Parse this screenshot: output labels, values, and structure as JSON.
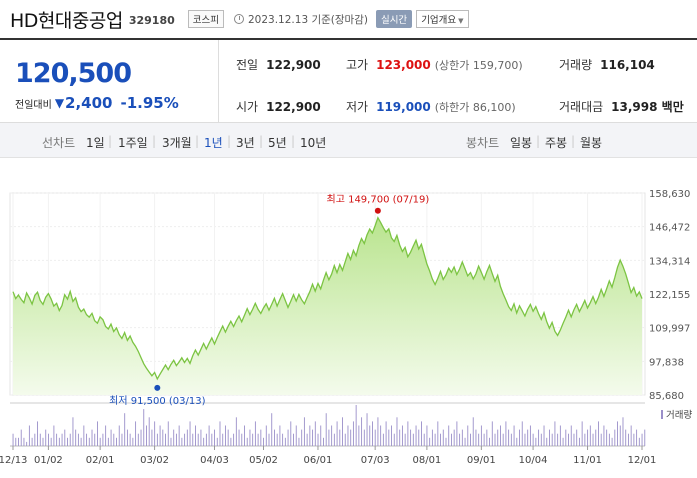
{
  "header": {
    "name": "HD현대중공업",
    "code": "329180",
    "market": "코스피",
    "date": "2023.12.13 기준(장마감)",
    "realtime": "실시간",
    "company_info": "기업개요",
    "company_info_caret": "▼"
  },
  "summary": {
    "price": "120,500",
    "change_label": "전일대비",
    "change_arrow": "▼",
    "change": "2,400",
    "change_pct": "-1.95%",
    "prev_label": "전일",
    "prev": "122,900",
    "high_label": "고가",
    "high": "123,000",
    "upper_limit": "(상한가 159,700)",
    "volume_label": "거래량",
    "volume": "116,104",
    "open_label": "시가",
    "open": "122,900",
    "low_label": "저가",
    "low": "119,000",
    "lower_limit": "(하한가 86,100)",
    "amount_label": "거래대금",
    "amount": "13,998 백만"
  },
  "period_bar": {
    "line_caption": "선차트",
    "periods": [
      "1일",
      "1주일",
      "3개월",
      "1년",
      "3년",
      "5년",
      "10년"
    ],
    "selected": "1년",
    "candle_caption": "봉차트",
    "candles": [
      "일봉",
      "주봉",
      "월봉"
    ]
  },
  "colors": {
    "accent_blue": "#1a4fba",
    "up_red": "#d11111",
    "line_green": "#7cc443",
    "fill_green": "#d8f0c0",
    "volume_bar": "#9a8fc9"
  },
  "chart_data": {
    "type": "area",
    "y_ticks": [
      "158,630",
      "146,472",
      "134,314",
      "122,155",
      "109,997",
      "97,838",
      "85,680"
    ],
    "ylim": [
      85680,
      158630
    ],
    "x_ticks": [
      "12/13",
      "01/02",
      "02/01",
      "03/02",
      "04/03",
      "05/02",
      "06/01",
      "07/03",
      "08/01",
      "09/01",
      "10/04",
      "11/01",
      "12/01"
    ],
    "high_annotation": "최고 149,700 (07/19)",
    "low_annotation": "최저 91,500 (03/13)",
    "volume_legend": "거래량",
    "series": [
      {
        "values": [
          123000,
          120500,
          121800,
          120200,
          119000,
          122500,
          120800,
          118500,
          121600,
          122800,
          119800,
          118400,
          121000,
          122300,
          120400,
          117800,
          118800,
          116200,
          118000,
          121900,
          120300,
          123100,
          119500,
          120800,
          117400,
          115800,
          116700,
          114700,
          113800,
          115200,
          112500,
          111600,
          113900,
          112900,
          110400,
          109500,
          111300,
          108600,
          109900,
          107500,
          106100,
          108200,
          105400,
          107000,
          104700,
          103300,
          101400,
          99200,
          97000,
          95400,
          94000,
          92600,
          93800,
          91500,
          93200,
          94900,
          96500,
          94800,
          96700,
          98200,
          96300,
          97600,
          99100,
          97400,
          98900,
          97100,
          99800,
          101900,
          100100,
          102200,
          104300,
          102300,
          104400,
          106300,
          104100,
          106400,
          108500,
          110600,
          108400,
          110500,
          112300,
          110400,
          112500,
          114200,
          112100,
          114500,
          116900,
          114700,
          116600,
          118800,
          116600,
          115100,
          117100,
          118600,
          116300,
          118400,
          120600,
          117800,
          120100,
          122300,
          119800,
          117300,
          119500,
          121900,
          119600,
          122000,
          120100,
          118600,
          120900,
          123000,
          125700,
          123200,
          126000,
          124000,
          127100,
          129900,
          127300,
          129300,
          132400,
          129900,
          132800,
          130700,
          133800,
          136800,
          134600,
          137900,
          136000,
          139600,
          142200,
          140400,
          143500,
          145600,
          144200,
          146900,
          149700,
          148000,
          146100,
          144500,
          145700,
          142400,
          141100,
          143300,
          139800,
          137500,
          139000,
          135600,
          137200,
          139500,
          141600,
          138400,
          140100,
          136500,
          133000,
          130500,
          127600,
          125600,
          127800,
          130300,
          127400,
          129000,
          131500,
          130000,
          131900,
          129200,
          131200,
          133700,
          131300,
          128700,
          129900,
          127600,
          129400,
          132200,
          130000,
          127500,
          130200,
          132500,
          129600,
          126700,
          128900,
          124900,
          122300,
          120000,
          117600,
          116200,
          118600,
          115300,
          117900,
          116100,
          114200,
          116600,
          118400,
          115900,
          117600,
          115100,
          113000,
          115400,
          112200,
          109800,
          111900,
          108700,
          107200,
          109100,
          111500,
          113800,
          116300,
          113900,
          116400,
          118400,
          115800,
          117700,
          119800,
          117100,
          119000,
          121200,
          118700,
          120900,
          123800,
          121300,
          124000,
          126900,
          124600,
          128100,
          131800,
          134400,
          132200,
          129400,
          126100,
          122700,
          124500,
          121400,
          122900,
          120500
        ]
      },
      {
        "name": "거래량",
        "values": [
          3,
          2,
          2,
          4,
          2,
          1,
          5,
          2,
          3,
          6,
          3,
          2,
          4,
          3,
          2,
          5,
          3,
          2,
          3,
          4,
          2,
          3,
          7,
          4,
          3,
          2,
          5,
          3,
          2,
          4,
          3,
          6,
          2,
          3,
          5,
          2,
          4,
          3,
          2,
          5,
          3,
          8,
          4,
          3,
          2,
          6,
          3,
          4,
          9,
          5,
          7,
          4,
          6,
          3,
          5,
          4,
          3,
          6,
          2,
          4,
          3,
          5,
          2,
          3,
          4,
          6,
          3,
          5,
          3,
          4,
          2,
          3,
          5,
          3,
          4,
          2,
          6,
          3,
          5,
          4,
          2,
          3,
          7,
          4,
          3,
          5,
          2,
          4,
          3,
          6,
          3,
          4,
          2,
          5,
          3,
          8,
          4,
          3,
          5,
          3,
          2,
          4,
          6,
          3,
          5,
          2,
          4,
          7,
          3,
          5,
          4,
          6,
          3,
          5,
          2,
          8,
          4,
          5,
          3,
          6,
          4,
          7,
          3,
          5,
          4,
          6,
          10,
          5,
          7,
          4,
          8,
          5,
          6,
          4,
          7,
          5,
          3,
          6,
          4,
          5,
          3,
          7,
          4,
          5,
          3,
          6,
          4,
          3,
          5,
          4,
          6,
          3,
          5,
          2,
          4,
          3,
          6,
          3,
          4,
          2,
          5,
          3,
          4,
          6,
          3,
          4,
          2,
          5,
          3,
          7,
          4,
          3,
          5,
          3,
          4,
          2,
          6,
          3,
          4,
          5,
          3,
          6,
          4,
          3,
          5,
          2,
          4,
          6,
          3,
          4,
          5,
          3,
          2,
          4,
          3,
          5,
          2,
          4,
          3,
          6,
          3,
          5,
          2,
          4,
          3,
          5,
          3,
          4,
          2,
          6,
          3,
          4,
          5,
          3,
          4,
          6,
          3,
          5,
          4,
          3,
          2,
          4,
          6,
          5,
          7,
          4,
          3,
          5,
          3,
          4,
          2,
          3,
          4
        ]
      }
    ]
  }
}
